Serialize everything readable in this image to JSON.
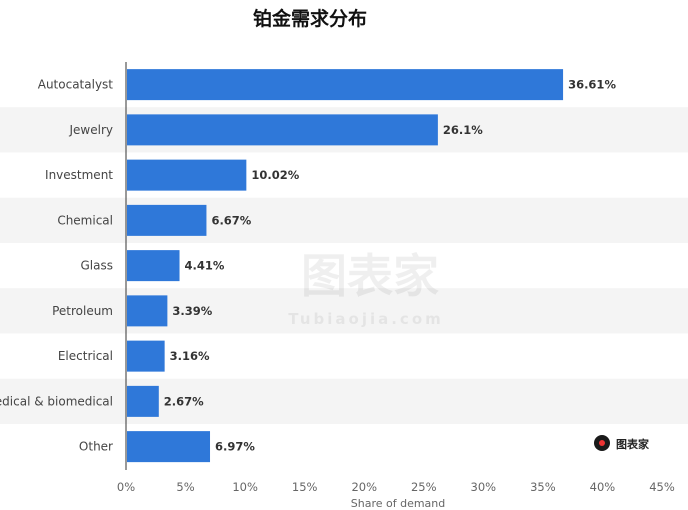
{
  "title": "铂金需求分布",
  "watermark": {
    "main": "图表家",
    "sub": "Tubiaojia.com"
  },
  "logo": {
    "text": "图表家",
    "icon": "magnifier-person-icon"
  },
  "chart_data": {
    "type": "bar",
    "orientation": "horizontal",
    "categories": [
      "Autocatalyst",
      "Jewelry",
      "Investment",
      "Chemical",
      "Glass",
      "Petroleum",
      "Electrical",
      "Medical & biomedical",
      "Other"
    ],
    "values": [
      36.61,
      26.1,
      10.02,
      6.67,
      4.41,
      3.39,
      3.16,
      2.67,
      6.97
    ],
    "value_labels": [
      "36.61%",
      "26.1%",
      "10.02%",
      "6.67%",
      "4.41%",
      "3.39%",
      "3.16%",
      "2.67%",
      "6.97%"
    ],
    "xlabel": "Share of demand",
    "xlim": [
      0,
      45
    ],
    "x_ticks": [
      0,
      5,
      10,
      15,
      20,
      25,
      30,
      35,
      40,
      45
    ],
    "x_tick_labels": [
      "0%",
      "5%",
      "10%",
      "15%",
      "20%",
      "25%",
      "30%",
      "35%",
      "40%",
      "45%"
    ],
    "bar_color": "#2f78d9",
    "stripe_color": "#f4f4f4",
    "grid": false
  }
}
